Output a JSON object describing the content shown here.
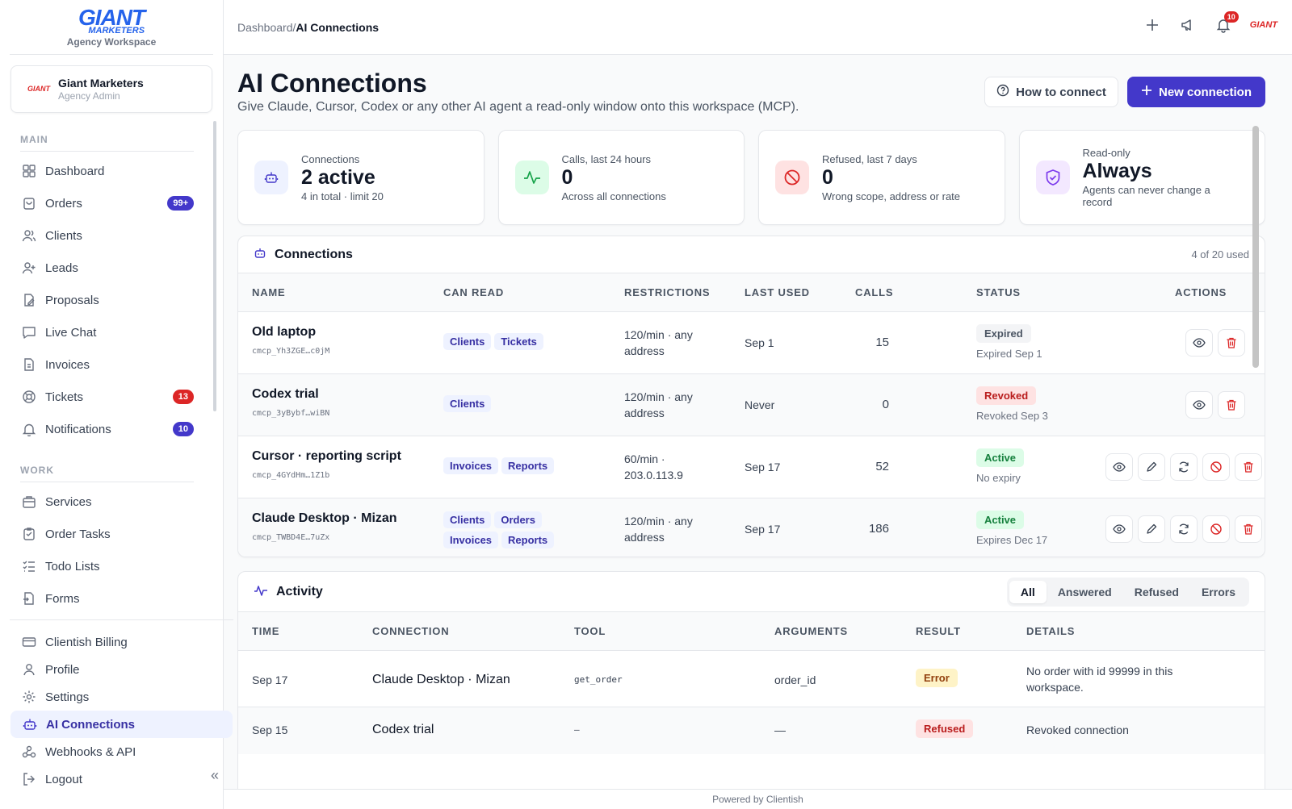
{
  "brand": {
    "logo_main": "GIANT",
    "logo_sub": "MARKETERS",
    "caption": "Agency Workspace"
  },
  "account": {
    "logo_text": "GIANT",
    "name": "Giant Marketers",
    "role": "Agency Admin"
  },
  "sidebar": {
    "main_label": "MAIN",
    "main_items": [
      {
        "label": "Dashboard",
        "icon": "dashboard-icon"
      },
      {
        "label": "Orders",
        "icon": "orders-icon",
        "badge": "99+"
      },
      {
        "label": "Clients",
        "icon": "clients-icon"
      },
      {
        "label": "Leads",
        "icon": "leads-icon"
      },
      {
        "label": "Proposals",
        "icon": "proposals-icon"
      },
      {
        "label": "Live Chat",
        "icon": "chat-icon"
      },
      {
        "label": "Invoices",
        "icon": "invoices-icon"
      },
      {
        "label": "Tickets",
        "icon": "tickets-icon",
        "badge": "13"
      },
      {
        "label": "Notifications",
        "icon": "bell-icon",
        "badge": "10"
      }
    ],
    "work_label": "WORK",
    "work_items": [
      {
        "label": "Services",
        "icon": "services-icon"
      },
      {
        "label": "Order Tasks",
        "icon": "tasks-icon"
      },
      {
        "label": "Todo Lists",
        "icon": "todo-icon"
      },
      {
        "label": "Forms",
        "icon": "forms-icon"
      }
    ],
    "bottom_items": [
      {
        "label": "Clientish Billing",
        "icon": "billing-icon"
      },
      {
        "label": "Profile",
        "icon": "profile-icon"
      },
      {
        "label": "Settings",
        "icon": "settings-icon"
      },
      {
        "label": "AI Connections",
        "icon": "robot-icon"
      },
      {
        "label": "Webhooks & API",
        "icon": "webhook-icon"
      },
      {
        "label": "Logout",
        "icon": "logout-icon"
      }
    ]
  },
  "topbar": {
    "crumb_root": "Dashboard",
    "crumb_sep": "/",
    "crumb_current": "AI Connections",
    "notif_count": "10",
    "brand_mini": "GIANT"
  },
  "page": {
    "title": "AI Connections",
    "subtitle": "Give Claude, Cursor, Codex or any other AI agent a read-only window onto this workspace (MCP).",
    "how_button": "How to connect",
    "new_button": "New connection"
  },
  "stats": [
    {
      "label": "Connections",
      "value": "2 active",
      "note": "4 in total · limit 20",
      "icon": "robot-icon",
      "bg": "#eef2ff",
      "fg": "#4338ca"
    },
    {
      "label": "Calls, last 24 hours",
      "value": "0",
      "note": "Across all connections",
      "icon": "activity-icon",
      "bg": "#dcfce7",
      "fg": "#16a34a"
    },
    {
      "label": "Refused, last 7 days",
      "value": "0",
      "note": "Wrong scope, address or rate",
      "icon": "block-icon",
      "bg": "#fee2e2",
      "fg": "#dc2626"
    },
    {
      "label": "Read-only",
      "value": "Always",
      "note": "Agents can never change a record",
      "icon": "shield-icon",
      "bg": "#f3e8ff",
      "fg": "#7c3aed"
    }
  ],
  "connections": {
    "title": "Connections",
    "meta": "4 of 20 used",
    "headers": [
      "NAME",
      "CAN READ",
      "RESTRICTIONS",
      "LAST USED",
      "CALLS",
      "STATUS",
      "ACTIONS"
    ],
    "rows": [
      {
        "name": "Old laptop",
        "key": "cmcp_Yh3ZGE…c0jM",
        "tags": [
          "Clients",
          "Tickets"
        ],
        "restrictions": "120/min · any address",
        "last_used": "Sep 1",
        "calls": "15",
        "status": "Expired",
        "status_kind": "expired",
        "status_note": "Expired Sep 1",
        "full_actions": false
      },
      {
        "name": "Codex trial",
        "key": "cmcp_3yBybf…wiBN",
        "tags": [
          "Clients"
        ],
        "restrictions": "120/min · any address",
        "last_used": "Never",
        "calls": "0",
        "status": "Revoked",
        "status_kind": "revoked",
        "status_note": "Revoked Sep 3",
        "full_actions": false
      },
      {
        "name": "Cursor · reporting script",
        "key": "cmcp_4GYdHm…1Z1b",
        "tags": [
          "Invoices",
          "Reports"
        ],
        "restrictions": "60/min · 203.0.113.9",
        "last_used": "Sep 17",
        "calls": "52",
        "status": "Active",
        "status_kind": "active",
        "status_note": "No expiry",
        "full_actions": true
      },
      {
        "name": "Claude Desktop · Mizan",
        "key": "cmcp_TWBD4E…7uZx",
        "tags": [
          "Clients",
          "Orders",
          "Invoices",
          "Reports"
        ],
        "restrictions": "120/min · any address",
        "last_used": "Sep 17",
        "calls": "186",
        "status": "Active",
        "status_kind": "active",
        "status_note": "Expires Dec 17",
        "full_actions": true
      }
    ]
  },
  "activity": {
    "title": "Activity",
    "filters": [
      "All",
      "Answered",
      "Refused",
      "Errors"
    ],
    "active_filter": "All",
    "headers": [
      "TIME",
      "CONNECTION",
      "TOOL",
      "ARGUMENTS",
      "RESULT",
      "DETAILS"
    ],
    "rows": [
      {
        "time": "Sep 17",
        "connection": "Claude Desktop · Mizan",
        "tool": "get_order",
        "arguments": "order_id",
        "result": "Error",
        "result_kind": "error",
        "details": "No order with id 99999 in this workspace."
      },
      {
        "time": "Sep 15",
        "connection": "Codex trial",
        "tool": "–",
        "arguments": "—",
        "result": "Refused",
        "result_kind": "refused",
        "details": "Revoked connection"
      }
    ]
  },
  "footer": "Powered by Clientish"
}
